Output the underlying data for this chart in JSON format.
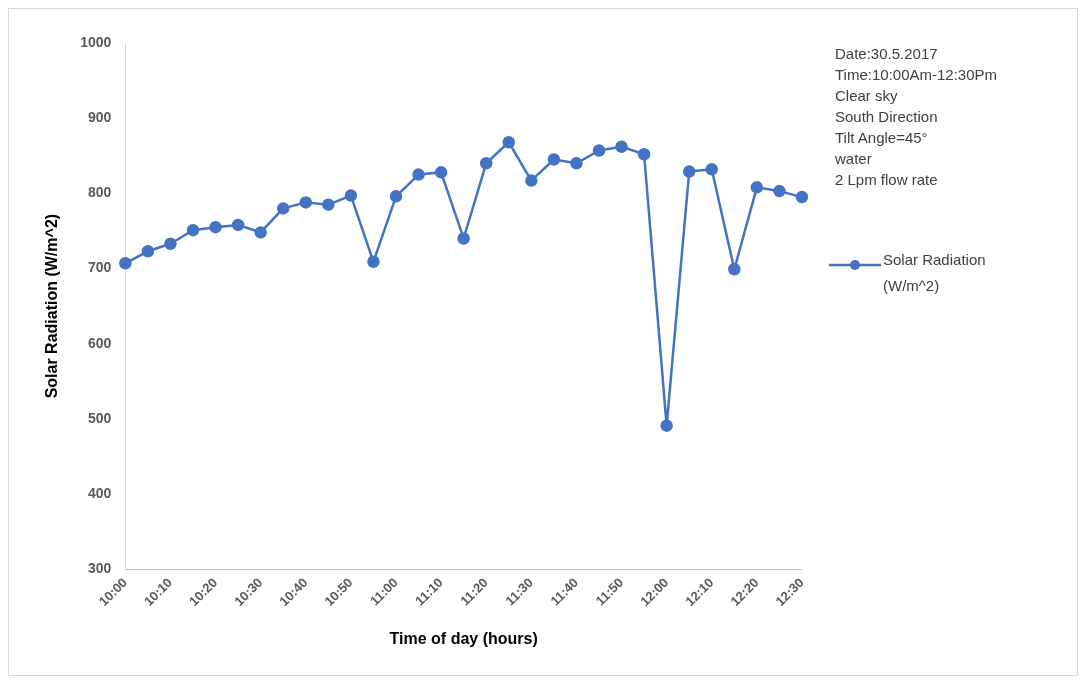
{
  "chart_data": {
    "type": "line",
    "xlabel": "Time of day (hours)",
    "ylabel": "Solar Radiation (W/m^2)",
    "categories": [
      "10:00",
      null,
      "10:10",
      null,
      "10:20",
      null,
      "10:30",
      null,
      "10:40",
      null,
      "10:50",
      null,
      "11:00",
      null,
      "11:10",
      null,
      "11:20",
      null,
      "11:30",
      null,
      "11:40",
      null,
      "11:50",
      null,
      "12:00",
      null,
      "12:10",
      null,
      "12:20",
      null,
      "12:30"
    ],
    "series": [
      {
        "name": "Solar Radiation (W/m^2)",
        "color": "#4472c4",
        "values": [
          707,
          723,
          733,
          751,
          755,
          758,
          748,
          780,
          788,
          785,
          797,
          709,
          796,
          825,
          828,
          740,
          840,
          868,
          817,
          845,
          840,
          857,
          862,
          852,
          491,
          829,
          832,
          699,
          808,
          803,
          795
        ]
      }
    ],
    "ylim": [
      300,
      1000
    ],
    "yticks": [
      300,
      400,
      500,
      600,
      700,
      800,
      900,
      1000
    ],
    "grid": false,
    "legend": "right",
    "marker": "circle",
    "line_style": "solid",
    "annotations": [
      "Date:30.5.2017",
      "Time:10:00Am-12:30Pm",
      "Clear sky",
      "South Direction",
      "Tilt Angle=45°",
      "water",
      "2 Lpm flow rate"
    ]
  }
}
